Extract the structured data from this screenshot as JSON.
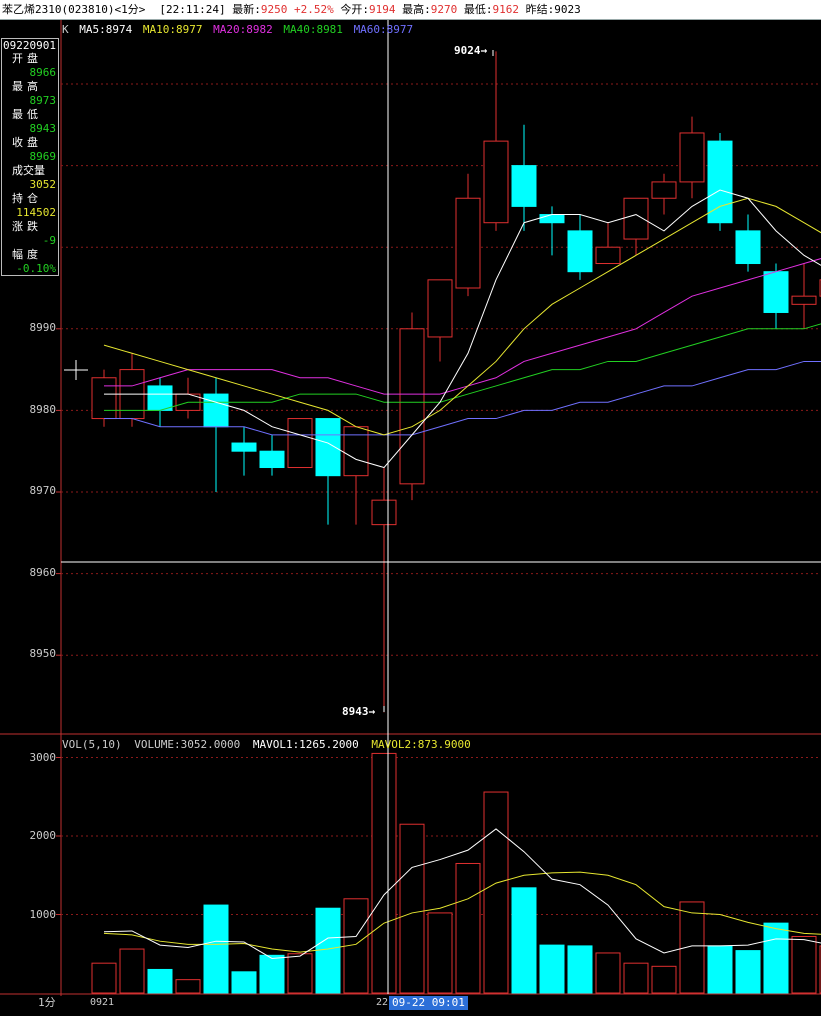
{
  "header": {
    "name": "苯乙烯2310(023810)<1分>",
    "time": "[22:11:24]",
    "latest_label": "最新:",
    "latest": "9250",
    "change": "+2.52%",
    "open_label": "今开:",
    "open": "9194",
    "high_label": "最高:",
    "high": "9270",
    "low_label": "最低:",
    "low": "9162",
    "prev_label": "昨结:",
    "prev": "9023"
  },
  "info": {
    "datetime": "09220901",
    "open_label": "开盘",
    "open": "8966",
    "high_label": "最高",
    "high": "8973",
    "low_label": "最低",
    "low": "8943",
    "close_label": "收盘",
    "close": "8969",
    "vol_label": "成交量",
    "vol": "3052",
    "oi_label": "持仓",
    "oi": "114502",
    "chg_label": "涨跌",
    "chg": "-9",
    "pct_label": "幅度",
    "pct": "-0.10%"
  },
  "legend": {
    "k": "K",
    "ma5": "MA5:8974",
    "ma10": "MA10:8977",
    "ma20": "MA20:8982",
    "ma40": "MA40:8981",
    "ma60": "MA60:8977"
  },
  "vol_legend": {
    "vol": "VOL(5,10)",
    "volume": "VOLUME:3052.0000",
    "mavol1": "MAVOL1:1265.2000",
    "mavol2": "MAVOL2:873.9000"
  },
  "markers": {
    "max": "9024→",
    "min": "8943→"
  },
  "price_axis": [
    "8990",
    "8980",
    "8970",
    "8960",
    "8950"
  ],
  "vol_axis": [
    "3000",
    "2000",
    "1000"
  ],
  "footer": {
    "period": "1分",
    "date": "0921",
    "day": "22",
    "cursor": "09-22 09:01"
  },
  "colors": {
    "up": "#e03030",
    "down": "#00ffff",
    "ma5": "#ffffff",
    "ma10": "#e6e630",
    "ma20": "#e030e0",
    "ma40": "#22d022",
    "ma60": "#7070ff",
    "grid": "#8b1a1a"
  },
  "chart_data": {
    "type": "candlestick",
    "price_ylim": [
      8943,
      9024
    ],
    "vol_ylim": [
      0,
      3052
    ],
    "candles": [
      {
        "o": 8979,
        "c": 8984,
        "h": 8985,
        "l": 8978,
        "vol": 380
      },
      {
        "o": 8979,
        "c": 8985,
        "h": 8987,
        "l": 8978,
        "vol": 560
      },
      {
        "o": 8983,
        "c": 8980,
        "h": 8984,
        "l": 8978,
        "vol": 300
      },
      {
        "o": 8980,
        "c": 8982,
        "h": 8984,
        "l": 8979,
        "vol": 170
      },
      {
        "o": 8982,
        "c": 8978,
        "h": 8984,
        "l": 8970,
        "vol": 1120
      },
      {
        "o": 8976,
        "c": 8975,
        "h": 8978,
        "l": 8972,
        "vol": 270
      },
      {
        "o": 8975,
        "c": 8973,
        "h": 8977,
        "l": 8972,
        "vol": 480
      },
      {
        "o": 8973,
        "c": 8979,
        "h": 8979,
        "l": 8973,
        "vol": 500
      },
      {
        "o": 8979,
        "c": 8972,
        "h": 8979,
        "l": 8966,
        "vol": 1080
      },
      {
        "o": 8972,
        "c": 8978,
        "h": 8978,
        "l": 8966,
        "vol": 1200
      },
      {
        "o": 8966,
        "c": 8969,
        "h": 8973,
        "l": 8943,
        "vol": 3052
      },
      {
        "o": 8971,
        "c": 8990,
        "h": 8992,
        "l": 8969,
        "vol": 2150
      },
      {
        "o": 8989,
        "c": 8996,
        "h": 8996,
        "l": 8986,
        "vol": 1020
      },
      {
        "o": 8995,
        "c": 9006,
        "h": 9009,
        "l": 8994,
        "vol": 1650
      },
      {
        "o": 9003,
        "c": 9013,
        "h": 9024,
        "l": 9002,
        "vol": 2560
      },
      {
        "o": 9010,
        "c": 9005,
        "h": 9015,
        "l": 9002,
        "vol": 1340
      },
      {
        "o": 9004,
        "c": 9003,
        "h": 9005,
        "l": 8999,
        "vol": 610
      },
      {
        "o": 9002,
        "c": 8997,
        "h": 9004,
        "l": 8996,
        "vol": 600
      },
      {
        "o": 8998,
        "c": 9000,
        "h": 9003,
        "l": 8998,
        "vol": 510
      },
      {
        "o": 9001,
        "c": 9006,
        "h": 9006,
        "l": 8999,
        "vol": 380
      },
      {
        "o": 9006,
        "c": 9008,
        "h": 9009,
        "l": 9004,
        "vol": 340
      },
      {
        "o": 9008,
        "c": 9014,
        "h": 9016,
        "l": 9006,
        "vol": 1160
      },
      {
        "o": 9013,
        "c": 9003,
        "h": 9014,
        "l": 9002,
        "vol": 600
      },
      {
        "o": 9002,
        "c": 8998,
        "h": 9004,
        "l": 8997,
        "vol": 540
      },
      {
        "o": 8997,
        "c": 8992,
        "h": 8998,
        "l": 8990,
        "vol": 890
      },
      {
        "o": 8993,
        "c": 8994,
        "h": 8998,
        "l": 8990,
        "vol": 720
      },
      {
        "o": 8994,
        "c": 8996,
        "h": 8997,
        "l": 8992,
        "vol": 600
      }
    ],
    "ma5": [
      8982,
      8982,
      8982,
      8982,
      8981,
      8980,
      8978,
      8977,
      8976,
      8974,
      8973,
      8977,
      8981,
      8987,
      8996,
      9003,
      9004,
      9004,
      9003,
      9004,
      9002,
      9005,
      9007,
      9006,
      9002,
      8999,
      8997
    ],
    "ma10": [
      8988,
      8987,
      8986,
      8985,
      8984,
      8983,
      8982,
      8981,
      8980,
      8978,
      8977,
      8978,
      8980,
      8983,
      8986,
      8990,
      8993,
      8995,
      8997,
      8999,
      9001,
      9003,
      9005,
      9006,
      9005,
      9003,
      9001
    ],
    "ma20": [
      8983,
      8983,
      8984,
      8985,
      8985,
      8985,
      8985,
      8984,
      8984,
      8983,
      8982,
      8982,
      8982,
      8983,
      8984,
      8986,
      8987,
      8988,
      8989,
      8990,
      8992,
      8994,
      8995,
      8996,
      8997,
      8998,
      8999
    ],
    "ma40": [
      8980,
      8980,
      8980,
      8981,
      8981,
      8981,
      8981,
      8982,
      8982,
      8982,
      8981,
      8981,
      8981,
      8982,
      8983,
      8984,
      8985,
      8985,
      8986,
      8986,
      8987,
      8988,
      8989,
      8990,
      8990,
      8990,
      8991
    ],
    "ma60": [
      8979,
      8979,
      8978,
      8978,
      8978,
      8978,
      8977,
      8977,
      8977,
      8977,
      8977,
      8977,
      8978,
      8979,
      8979,
      8980,
      8980,
      8981,
      8981,
      8982,
      8983,
      8983,
      8984,
      8985,
      8985,
      8986,
      8986
    ],
    "mavol1": [
      780,
      790,
      610,
      580,
      660,
      650,
      440,
      470,
      700,
      720,
      1250,
      1600,
      1700,
      1820,
      2090,
      1800,
      1450,
      1380,
      1120,
      690,
      510,
      600,
      600,
      610,
      690,
      680,
      610
    ],
    "mavol2": [
      760,
      740,
      660,
      620,
      620,
      630,
      560,
      520,
      560,
      620,
      890,
      1020,
      1080,
      1200,
      1400,
      1500,
      1530,
      1540,
      1500,
      1380,
      1100,
      1020,
      1000,
      900,
      820,
      760,
      740
    ]
  }
}
